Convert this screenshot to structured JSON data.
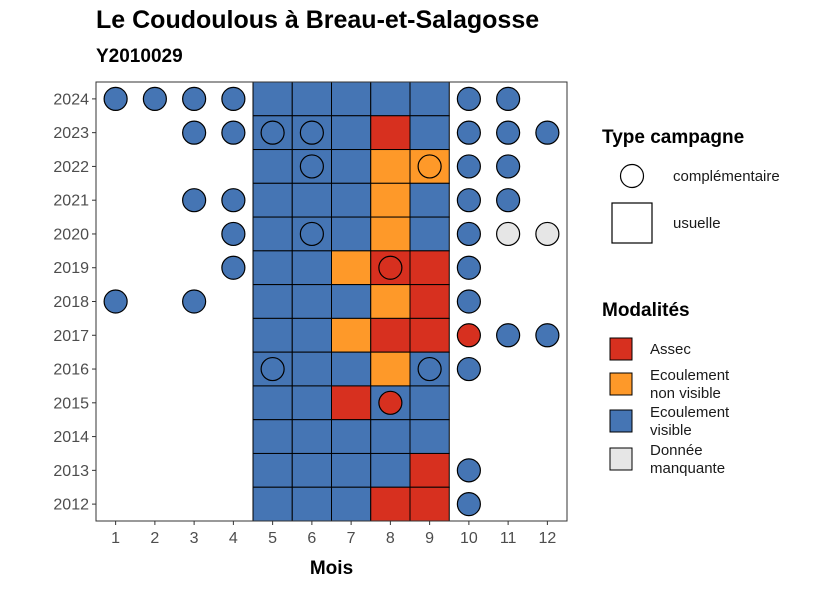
{
  "chart_data": {
    "type": "heatmap",
    "title": "Le Coudoulous à Breau-et-Salagosse",
    "subtitle": "Y2010029",
    "xlabel": "Mois",
    "ylabel": "",
    "x": [
      1,
      2,
      3,
      4,
      5,
      6,
      7,
      8,
      9,
      10,
      11,
      12
    ],
    "y": [
      2012,
      2013,
      2014,
      2015,
      2016,
      2017,
      2018,
      2019,
      2020,
      2021,
      2022,
      2023,
      2024
    ],
    "colors": {
      "Assec": "#d7301f",
      "Ecoulement non visible": "#fe9929",
      "Ecoulement visible": "#4575b4",
      "Donnée manquante": "#e6e6e6"
    },
    "legend_shape": {
      "title": "Type campagne",
      "entries": [
        {
          "key": "complementaire",
          "label": "complémentaire",
          "shape": "circle"
        },
        {
          "key": "usuelle",
          "label": "usuelle",
          "shape": "square"
        }
      ]
    },
    "legend_fill": {
      "title": "Modalités",
      "entries": [
        {
          "key": "Assec",
          "lines": [
            "Assec"
          ]
        },
        {
          "key": "Ecoulement non visible",
          "lines": [
            "Ecoulement",
            "non visible"
          ]
        },
        {
          "key": "Ecoulement visible",
          "lines": [
            "Ecoulement",
            "visible"
          ]
        },
        {
          "key": "Donnée manquante",
          "lines": [
            "Donnée",
            "manquante"
          ]
        }
      ]
    },
    "squares": [
      {
        "year": 2024,
        "month": 5,
        "value": "Ecoulement visible"
      },
      {
        "year": 2024,
        "month": 6,
        "value": "Ecoulement visible"
      },
      {
        "year": 2024,
        "month": 7,
        "value": "Ecoulement visible"
      },
      {
        "year": 2024,
        "month": 8,
        "value": "Ecoulement visible"
      },
      {
        "year": 2024,
        "month": 9,
        "value": "Ecoulement visible"
      },
      {
        "year": 2023,
        "month": 5,
        "value": "Ecoulement visible"
      },
      {
        "year": 2023,
        "month": 6,
        "value": "Ecoulement visible"
      },
      {
        "year": 2023,
        "month": 7,
        "value": "Ecoulement visible"
      },
      {
        "year": 2023,
        "month": 8,
        "value": "Assec"
      },
      {
        "year": 2023,
        "month": 9,
        "value": "Ecoulement visible"
      },
      {
        "year": 2022,
        "month": 5,
        "value": "Ecoulement visible"
      },
      {
        "year": 2022,
        "month": 6,
        "value": "Ecoulement visible"
      },
      {
        "year": 2022,
        "month": 7,
        "value": "Ecoulement visible"
      },
      {
        "year": 2022,
        "month": 8,
        "value": "Ecoulement non visible"
      },
      {
        "year": 2022,
        "month": 9,
        "value": "Ecoulement non visible"
      },
      {
        "year": 2021,
        "month": 5,
        "value": "Ecoulement visible"
      },
      {
        "year": 2021,
        "month": 6,
        "value": "Ecoulement visible"
      },
      {
        "year": 2021,
        "month": 7,
        "value": "Ecoulement visible"
      },
      {
        "year": 2021,
        "month": 8,
        "value": "Ecoulement non visible"
      },
      {
        "year": 2021,
        "month": 9,
        "value": "Ecoulement visible"
      },
      {
        "year": 2020,
        "month": 5,
        "value": "Ecoulement visible"
      },
      {
        "year": 2020,
        "month": 6,
        "value": "Ecoulement visible"
      },
      {
        "year": 2020,
        "month": 7,
        "value": "Ecoulement visible"
      },
      {
        "year": 2020,
        "month": 8,
        "value": "Ecoulement non visible"
      },
      {
        "year": 2020,
        "month": 9,
        "value": "Ecoulement visible"
      },
      {
        "year": 2019,
        "month": 5,
        "value": "Ecoulement visible"
      },
      {
        "year": 2019,
        "month": 6,
        "value": "Ecoulement visible"
      },
      {
        "year": 2019,
        "month": 7,
        "value": "Ecoulement non visible"
      },
      {
        "year": 2019,
        "month": 8,
        "value": "Assec"
      },
      {
        "year": 2019,
        "month": 9,
        "value": "Assec"
      },
      {
        "year": 2018,
        "month": 5,
        "value": "Ecoulement visible"
      },
      {
        "year": 2018,
        "month": 6,
        "value": "Ecoulement visible"
      },
      {
        "year": 2018,
        "month": 7,
        "value": "Ecoulement visible"
      },
      {
        "year": 2018,
        "month": 8,
        "value": "Ecoulement non visible"
      },
      {
        "year": 2018,
        "month": 9,
        "value": "Assec"
      },
      {
        "year": 2017,
        "month": 5,
        "value": "Ecoulement visible"
      },
      {
        "year": 2017,
        "month": 6,
        "value": "Ecoulement visible"
      },
      {
        "year": 2017,
        "month": 7,
        "value": "Ecoulement non visible"
      },
      {
        "year": 2017,
        "month": 8,
        "value": "Assec"
      },
      {
        "year": 2017,
        "month": 9,
        "value": "Assec"
      },
      {
        "year": 2016,
        "month": 5,
        "value": "Ecoulement visible"
      },
      {
        "year": 2016,
        "month": 6,
        "value": "Ecoulement visible"
      },
      {
        "year": 2016,
        "month": 7,
        "value": "Ecoulement visible"
      },
      {
        "year": 2016,
        "month": 8,
        "value": "Ecoulement non visible"
      },
      {
        "year": 2016,
        "month": 9,
        "value": "Ecoulement visible"
      },
      {
        "year": 2015,
        "month": 5,
        "value": "Ecoulement visible"
      },
      {
        "year": 2015,
        "month": 6,
        "value": "Ecoulement visible"
      },
      {
        "year": 2015,
        "month": 7,
        "value": "Assec"
      },
      {
        "year": 2015,
        "month": 8,
        "value": "Ecoulement visible"
      },
      {
        "year": 2015,
        "month": 9,
        "value": "Ecoulement visible"
      },
      {
        "year": 2014,
        "month": 5,
        "value": "Ecoulement visible"
      },
      {
        "year": 2014,
        "month": 6,
        "value": "Ecoulement visible"
      },
      {
        "year": 2014,
        "month": 7,
        "value": "Ecoulement visible"
      },
      {
        "year": 2014,
        "month": 8,
        "value": "Ecoulement visible"
      },
      {
        "year": 2014,
        "month": 9,
        "value": "Ecoulement visible"
      },
      {
        "year": 2013,
        "month": 5,
        "value": "Ecoulement visible"
      },
      {
        "year": 2013,
        "month": 6,
        "value": "Ecoulement visible"
      },
      {
        "year": 2013,
        "month": 7,
        "value": "Ecoulement visible"
      },
      {
        "year": 2013,
        "month": 8,
        "value": "Ecoulement visible"
      },
      {
        "year": 2013,
        "month": 9,
        "value": "Assec"
      },
      {
        "year": 2012,
        "month": 5,
        "value": "Ecoulement visible"
      },
      {
        "year": 2012,
        "month": 6,
        "value": "Ecoulement visible"
      },
      {
        "year": 2012,
        "month": 7,
        "value": "Ecoulement visible"
      },
      {
        "year": 2012,
        "month": 8,
        "value": "Assec"
      },
      {
        "year": 2012,
        "month": 9,
        "value": "Assec"
      }
    ],
    "circles": [
      {
        "year": 2024,
        "month": 1,
        "value": "Ecoulement visible"
      },
      {
        "year": 2024,
        "month": 2,
        "value": "Ecoulement visible"
      },
      {
        "year": 2024,
        "month": 3,
        "value": "Ecoulement visible"
      },
      {
        "year": 2024,
        "month": 4,
        "value": "Ecoulement visible"
      },
      {
        "year": 2024,
        "month": 10,
        "value": "Ecoulement visible"
      },
      {
        "year": 2024,
        "month": 11,
        "value": "Ecoulement visible"
      },
      {
        "year": 2023,
        "month": 3,
        "value": "Ecoulement visible"
      },
      {
        "year": 2023,
        "month": 4,
        "value": "Ecoulement visible"
      },
      {
        "year": 2023,
        "month": 5,
        "value": "Ecoulement visible"
      },
      {
        "year": 2023,
        "month": 6,
        "value": "Ecoulement visible"
      },
      {
        "year": 2023,
        "month": 10,
        "value": "Ecoulement visible"
      },
      {
        "year": 2023,
        "month": 11,
        "value": "Ecoulement visible"
      },
      {
        "year": 2023,
        "month": 12,
        "value": "Ecoulement visible"
      },
      {
        "year": 2022,
        "month": 6,
        "value": "Ecoulement visible"
      },
      {
        "year": 2022,
        "month": 9,
        "value": "Ecoulement non visible"
      },
      {
        "year": 2022,
        "month": 10,
        "value": "Ecoulement visible"
      },
      {
        "year": 2022,
        "month": 11,
        "value": "Ecoulement visible"
      },
      {
        "year": 2021,
        "month": 3,
        "value": "Ecoulement visible"
      },
      {
        "year": 2021,
        "month": 4,
        "value": "Ecoulement visible"
      },
      {
        "year": 2021,
        "month": 10,
        "value": "Ecoulement visible"
      },
      {
        "year": 2021,
        "month": 11,
        "value": "Ecoulement visible"
      },
      {
        "year": 2020,
        "month": 4,
        "value": "Ecoulement visible"
      },
      {
        "year": 2020,
        "month": 6,
        "value": "Ecoulement visible"
      },
      {
        "year": 2020,
        "month": 10,
        "value": "Ecoulement visible"
      },
      {
        "year": 2020,
        "month": 11,
        "value": "Donnée manquante"
      },
      {
        "year": 2020,
        "month": 12,
        "value": "Donnée manquante"
      },
      {
        "year": 2019,
        "month": 4,
        "value": "Ecoulement visible"
      },
      {
        "year": 2019,
        "month": 8,
        "value": "Assec"
      },
      {
        "year": 2019,
        "month": 10,
        "value": "Ecoulement visible"
      },
      {
        "year": 2018,
        "month": 1,
        "value": "Ecoulement visible"
      },
      {
        "year": 2018,
        "month": 3,
        "value": "Ecoulement visible"
      },
      {
        "year": 2018,
        "month": 10,
        "value": "Ecoulement visible"
      },
      {
        "year": 2017,
        "month": 10,
        "value": "Assec"
      },
      {
        "year": 2017,
        "month": 11,
        "value": "Ecoulement visible"
      },
      {
        "year": 2017,
        "month": 12,
        "value": "Ecoulement visible"
      },
      {
        "year": 2016,
        "month": 5,
        "value": "Ecoulement visible"
      },
      {
        "year": 2016,
        "month": 9,
        "value": "Ecoulement visible"
      },
      {
        "year": 2016,
        "month": 10,
        "value": "Ecoulement visible"
      },
      {
        "year": 2015,
        "month": 8,
        "value": "Assec"
      },
      {
        "year": 2013,
        "month": 10,
        "value": "Ecoulement visible"
      },
      {
        "year": 2012,
        "month": 10,
        "value": "Ecoulement visible"
      }
    ]
  }
}
